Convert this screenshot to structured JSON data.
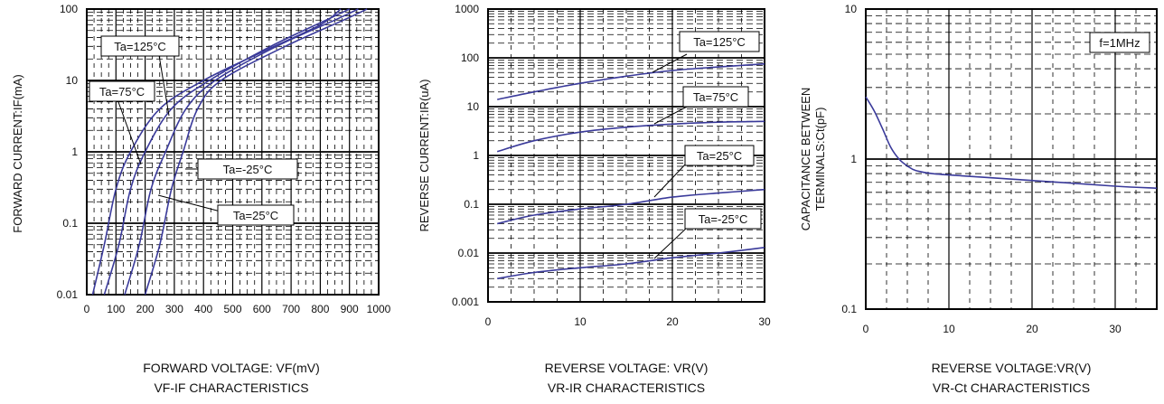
{
  "chart_data": [
    {
      "type": "line",
      "log_y": true,
      "ylabel": "FORWARD CURRENT:IF(mA)",
      "xlabel": "FORWARD VOLTAGE: VF(mV)",
      "caption": "VF-IF CHARACTERISTICS",
      "xlim": [
        0,
        1000
      ],
      "ylim": [
        0.01,
        100
      ],
      "x_ticks": [
        "0",
        "100",
        "200",
        "300",
        "400",
        "500",
        "600",
        "700",
        "800",
        "900",
        "1000"
      ],
      "y_ticks": [
        "0.01",
        "0.1",
        "1",
        "10",
        "100"
      ],
      "grid": "dense dashed",
      "series": [
        {
          "name": "Ta=125°C",
          "color": "#3a3a9a",
          "points": [
            [
              20,
              0.01
            ],
            [
              60,
              0.05
            ],
            [
              100,
              0.3
            ],
            [
              150,
              1
            ],
            [
              250,
              4
            ],
            [
              400,
              10
            ],
            [
              600,
              25
            ],
            [
              800,
              60
            ],
            [
              870,
              100
            ]
          ]
        },
        {
          "name": "Ta=75°C",
          "color": "#3a3a9a",
          "points": [
            [
              60,
              0.01
            ],
            [
              110,
              0.05
            ],
            [
              150,
              0.3
            ],
            [
              200,
              1
            ],
            [
              290,
              4
            ],
            [
              420,
              10
            ],
            [
              630,
              30
            ],
            [
              820,
              70
            ],
            [
              900,
              100
            ]
          ]
        },
        {
          "name": "Ta=25°C",
          "color": "#3a3a9a",
          "points": [
            [
              130,
              0.01
            ],
            [
              180,
              0.05
            ],
            [
              220,
              0.3
            ],
            [
              270,
              1
            ],
            [
              340,
              4
            ],
            [
              440,
              10
            ],
            [
              650,
              30
            ],
            [
              850,
              70
            ],
            [
              930,
              100
            ]
          ]
        },
        {
          "name": "Ta=-25°C",
          "color": "#3a3a9a",
          "points": [
            [
              200,
              0.01
            ],
            [
              250,
              0.05
            ],
            [
              290,
              0.3
            ],
            [
              330,
              1
            ],
            [
              380,
              4
            ],
            [
              460,
              10
            ],
            [
              680,
              30
            ],
            [
              880,
              70
            ],
            [
              960,
              100
            ]
          ]
        }
      ]
    },
    {
      "type": "line",
      "log_y": true,
      "ylabel": "REVERSE CURRENT:IR(uA)",
      "xlabel": "REVERSE VOLTAGE: VR(V)",
      "caption": "VR-IR CHARACTERISTICS",
      "xlim": [
        0,
        30
      ],
      "ylim": [
        0.001,
        1000
      ],
      "x_ticks": [
        "0",
        "10",
        "20",
        "30"
      ],
      "y_ticks": [
        "0.001",
        "0.01",
        "0.1",
        "1",
        "10",
        "100",
        "1000"
      ],
      "grid": "dense dashed",
      "series": [
        {
          "name": "Ta=125°C",
          "color": "#3a3a9a",
          "points": [
            [
              1,
              14
            ],
            [
              5,
              20
            ],
            [
              10,
              30
            ],
            [
              15,
              42
            ],
            [
              20,
              55
            ],
            [
              25,
              65
            ],
            [
              30,
              75
            ]
          ]
        },
        {
          "name": "Ta=75°C",
          "color": "#3a3a9a",
          "points": [
            [
              1,
              1.2
            ],
            [
              5,
              2
            ],
            [
              10,
              3
            ],
            [
              15,
              3.8
            ],
            [
              20,
              4.4
            ],
            [
              25,
              4.8
            ],
            [
              30,
              5
            ]
          ]
        },
        {
          "name": "Ta=25°C",
          "color": "#3a3a9a",
          "points": [
            [
              1,
              0.04
            ],
            [
              5,
              0.06
            ],
            [
              10,
              0.08
            ],
            [
              15,
              0.1
            ],
            [
              20,
              0.14
            ],
            [
              25,
              0.17
            ],
            [
              30,
              0.2
            ]
          ]
        },
        {
          "name": "Ta=-25°C",
          "color": "#3a3a9a",
          "points": [
            [
              1,
              0.003
            ],
            [
              5,
              0.004
            ],
            [
              10,
              0.005
            ],
            [
              15,
              0.006
            ],
            [
              20,
              0.008
            ],
            [
              25,
              0.01
            ],
            [
              30,
              0.013
            ]
          ]
        }
      ]
    },
    {
      "type": "line",
      "log_y": true,
      "ylabel": "CAPACITANCE BETWEEN",
      "ylabel2": "TERMINALS:Ct(pF)",
      "xlabel": "REVERSE VOLTAGE:VR(V)",
      "caption": "VR-Ct CHARACTERISTICS",
      "xlim": [
        0,
        35
      ],
      "ylim": [
        0.1,
        10
      ],
      "x_ticks": [
        "0",
        "10",
        "20",
        "30"
      ],
      "y_ticks": [
        "0.1",
        "1",
        "10"
      ],
      "grid": "dense dashed",
      "annotation": "f=1MHz",
      "series": [
        {
          "name": "",
          "color": "#3a3a9a",
          "points": [
            [
              0,
              2.6
            ],
            [
              1,
              2.1
            ],
            [
              2,
              1.6
            ],
            [
              3,
              1.2
            ],
            [
              4,
              1.0
            ],
            [
              5,
              0.9
            ],
            [
              6,
              0.84
            ],
            [
              8,
              0.8
            ],
            [
              12,
              0.77
            ],
            [
              20,
              0.72
            ],
            [
              30,
              0.66
            ],
            [
              35,
              0.64
            ]
          ]
        }
      ]
    }
  ]
}
